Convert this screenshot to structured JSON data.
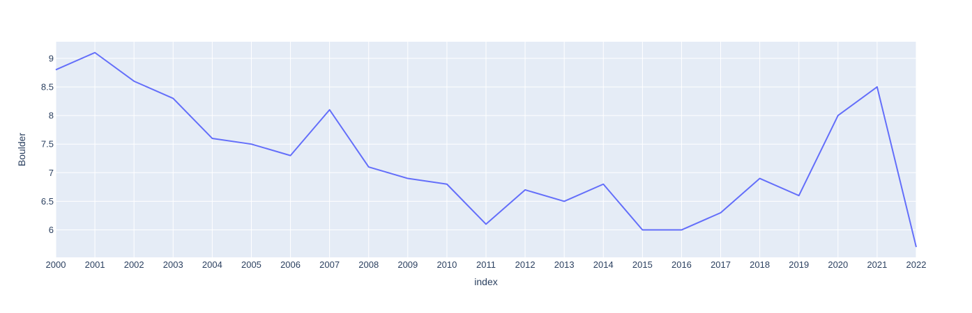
{
  "chart_data": {
    "type": "line",
    "title": "",
    "xlabel": "index",
    "ylabel": "Boulder",
    "x": [
      2000,
      2001,
      2002,
      2003,
      2004,
      2005,
      2006,
      2007,
      2008,
      2009,
      2010,
      2011,
      2012,
      2013,
      2014,
      2015,
      2016,
      2017,
      2018,
      2019,
      2020,
      2021,
      2022
    ],
    "series": [
      {
        "name": "",
        "values": [
          8.8,
          9.1,
          8.6,
          8.3,
          7.6,
          7.5,
          7.3,
          8.1,
          7.1,
          6.9,
          6.8,
          6.1,
          6.7,
          6.5,
          6.8,
          6.0,
          6.0,
          6.3,
          6.9,
          6.6,
          8.0,
          8.5,
          5.7
        ]
      }
    ],
    "xlim": [
      2000,
      2022
    ],
    "ylim": [
      5.52,
      9.29
    ],
    "xticks": [
      "2000",
      "2001",
      "2002",
      "2003",
      "2004",
      "2005",
      "2006",
      "2007",
      "2008",
      "2009",
      "2010",
      "2011",
      "2012",
      "2013",
      "2014",
      "2015",
      "2016",
      "2017",
      "2018",
      "2019",
      "2020",
      "2021",
      "2022"
    ],
    "yticks": [
      6,
      6.5,
      7,
      7.5,
      8,
      8.5,
      9
    ],
    "ytick_labels": [
      "6",
      "6.5",
      "7",
      "7.5",
      "8",
      "8.5",
      "9"
    ],
    "grid": true,
    "colors": {
      "line": "#636efa",
      "plot_bg": "#e5ecf6",
      "grid": "#ffffff",
      "text": "#2a3f5f"
    }
  }
}
